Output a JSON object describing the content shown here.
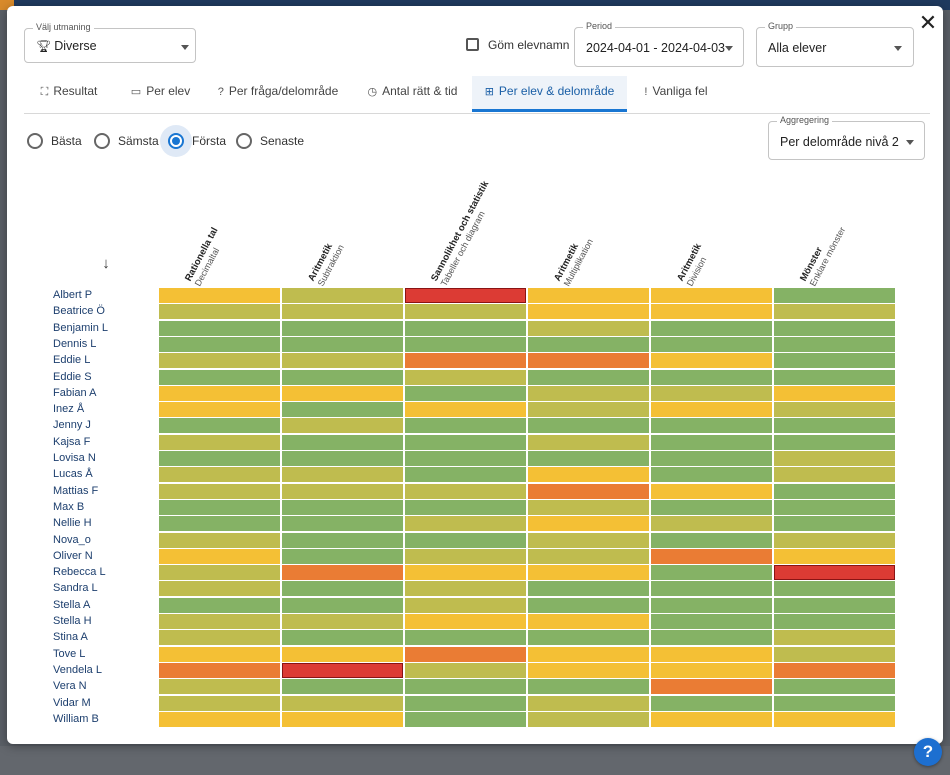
{
  "challenge": {
    "label": "Välj utmaning",
    "value": "Diverse"
  },
  "hide_names": {
    "label": "Göm elevnamn",
    "checked": false
  },
  "period": {
    "label": "Period",
    "value": "2024-04-01 - 2024-04-03"
  },
  "group": {
    "label": "Grupp",
    "value": "Alla elever"
  },
  "tabs": [
    {
      "label": "Resultat",
      "icon": "binoculars-icon",
      "glyph": "⛶",
      "active": false
    },
    {
      "label": "Per elev",
      "icon": "classroom-icon",
      "glyph": "▭",
      "active": false
    },
    {
      "label": "Per fråga/delområde",
      "icon": "question-icon",
      "glyph": "?",
      "active": false
    },
    {
      "label": "Antal rätt & tid",
      "icon": "clock-icon",
      "glyph": "◷",
      "active": false
    },
    {
      "label": "Per elev & delområde",
      "icon": "grid-icon",
      "glyph": "⊞",
      "active": true
    },
    {
      "label": "Vanliga fel",
      "icon": "exclamation-icon",
      "glyph": "!",
      "active": false
    }
  ],
  "selection": {
    "options": [
      "Bästa",
      "Sämsta",
      "Första",
      "Senaste"
    ],
    "selected": "Första"
  },
  "aggregation": {
    "label": "Aggregering",
    "value": "Per delområde nivå 2"
  },
  "colors": {
    "G": "#85b265",
    "O": "#bfbc4f",
    "Y": "#f4c035",
    "A": "#ea7c34",
    "R": "#dc3b34",
    "accent": "#1976d2"
  },
  "heatmap": {
    "columns": [
      {
        "title": "Rationella tal",
        "subtitle": "Decimaltal"
      },
      {
        "title": "Aritmetik",
        "subtitle": "Subtraktion"
      },
      {
        "title": "Sannolikhet och statistik",
        "subtitle": "Tabeller och diagram"
      },
      {
        "title": "Aritmetik",
        "subtitle": "Multiplikation"
      },
      {
        "title": "Aritmetik",
        "subtitle": "Division"
      },
      {
        "title": "Mönster",
        "subtitle": "Enklare mönster"
      }
    ],
    "rows": [
      {
        "name": "Albert P",
        "cells": [
          "Y",
          "O",
          "R",
          "Y",
          "Y",
          "G"
        ]
      },
      {
        "name": "Beatrice Ö",
        "cells": [
          "O",
          "O",
          "O",
          "Y",
          "Y",
          "O"
        ]
      },
      {
        "name": "Benjamin L",
        "cells": [
          "G",
          "G",
          "G",
          "O",
          "G",
          "G"
        ]
      },
      {
        "name": "Dennis L",
        "cells": [
          "G",
          "G",
          "G",
          "G",
          "G",
          "G"
        ]
      },
      {
        "name": "Eddie L",
        "cells": [
          "O",
          "O",
          "A",
          "A",
          "Y",
          "G"
        ]
      },
      {
        "name": "Eddie S",
        "cells": [
          "G",
          "G",
          "O",
          "G",
          "G",
          "G"
        ]
      },
      {
        "name": "Fabian A",
        "cells": [
          "Y",
          "Y",
          "G",
          "O",
          "O",
          "Y"
        ]
      },
      {
        "name": "Inez Å",
        "cells": [
          "Y",
          "G",
          "Y",
          "O",
          "Y",
          "O"
        ]
      },
      {
        "name": "Jenny J",
        "cells": [
          "G",
          "O",
          "G",
          "G",
          "G",
          "G"
        ]
      },
      {
        "name": "Kajsa F",
        "cells": [
          "O",
          "G",
          "G",
          "O",
          "G",
          "G"
        ]
      },
      {
        "name": "Lovisa N",
        "cells": [
          "G",
          "G",
          "G",
          "G",
          "G",
          "O"
        ]
      },
      {
        "name": "Lucas Å",
        "cells": [
          "O",
          "O",
          "G",
          "Y",
          "G",
          "O"
        ]
      },
      {
        "name": "Mattias F",
        "cells": [
          "O",
          "O",
          "O",
          "A",
          "Y",
          "G"
        ]
      },
      {
        "name": "Max B",
        "cells": [
          "G",
          "G",
          "G",
          "O",
          "G",
          "G"
        ]
      },
      {
        "name": "Nellie H",
        "cells": [
          "G",
          "G",
          "O",
          "Y",
          "O",
          "G"
        ]
      },
      {
        "name": "Nova_o",
        "cells": [
          "O",
          "G",
          "G",
          "O",
          "G",
          "O"
        ]
      },
      {
        "name": "Oliver N",
        "cells": [
          "Y",
          "G",
          "O",
          "O",
          "A",
          "Y"
        ]
      },
      {
        "name": "Rebecca L",
        "cells": [
          "O",
          "A",
          "Y",
          "Y",
          "G",
          "R"
        ]
      },
      {
        "name": "Sandra L",
        "cells": [
          "O",
          "G",
          "O",
          "G",
          "G",
          "G"
        ]
      },
      {
        "name": "Stella A",
        "cells": [
          "G",
          "G",
          "O",
          "G",
          "G",
          "G"
        ]
      },
      {
        "name": "Stella H",
        "cells": [
          "O",
          "O",
          "Y",
          "Y",
          "G",
          "G"
        ]
      },
      {
        "name": "Stina A",
        "cells": [
          "O",
          "G",
          "G",
          "G",
          "G",
          "O"
        ]
      },
      {
        "name": "Tove L",
        "cells": [
          "Y",
          "Y",
          "A",
          "Y",
          "Y",
          "O"
        ]
      },
      {
        "name": "Vendela L",
        "cells": [
          "A",
          "R",
          "O",
          "Y",
          "Y",
          "A"
        ]
      },
      {
        "name": "Vera N",
        "cells": [
          "O",
          "G",
          "G",
          "G",
          "A",
          "G"
        ]
      },
      {
        "name": "Vidar M",
        "cells": [
          "O",
          "O",
          "G",
          "O",
          "G",
          "G"
        ]
      },
      {
        "name": "William B",
        "cells": [
          "Y",
          "Y",
          "G",
          "O",
          "Y",
          "Y"
        ]
      }
    ]
  }
}
